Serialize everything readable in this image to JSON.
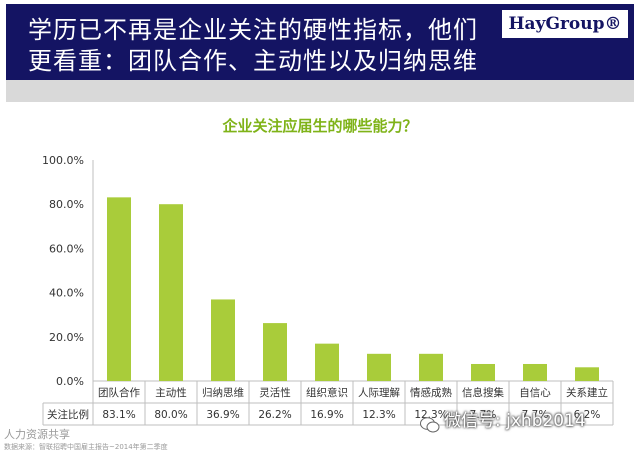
{
  "header": {
    "title": "学历已不再是企业关注的硬性指标，他们更看重：团队合作、主动性以及归纳思维",
    "brand": "HayGroup®"
  },
  "colors": {
    "bar": "#a9cc3a",
    "title": "#7fb318",
    "header_bg": "#141463"
  },
  "chart_data": {
    "type": "bar",
    "title": "企业关注应届生的哪些能力？",
    "categories": [
      "团队合作",
      "主动性",
      "归纳思维",
      "灵活性",
      "组织意识",
      "人际理解",
      "情感成熟",
      "信息搜集",
      "自信心",
      "关系建立"
    ],
    "values": [
      83.1,
      80.0,
      36.9,
      26.2,
      16.9,
      12.3,
      12.3,
      7.7,
      7.7,
      6.2
    ],
    "table_row_label": "关注比例",
    "value_labels": [
      "83.1%",
      "80.0%",
      "36.9%",
      "26.2%",
      "16.9%",
      "12.3%",
      "12.3%",
      "7.7%",
      "7.7%",
      "6.2%"
    ],
    "ytick_labels": [
      "0.0%",
      "20.0%",
      "40.0%",
      "60.0%",
      "80.0%",
      "100.0%"
    ],
    "ylim": [
      0,
      100
    ],
    "xlabel": "",
    "ylabel": "",
    "legend": "none"
  },
  "footer": {
    "logo": "人力资源共享",
    "source": "数据来源：智联招聘中国雇主报告~2014年第二季度"
  },
  "watermark": {
    "text": "微信号: jxhb2014"
  }
}
